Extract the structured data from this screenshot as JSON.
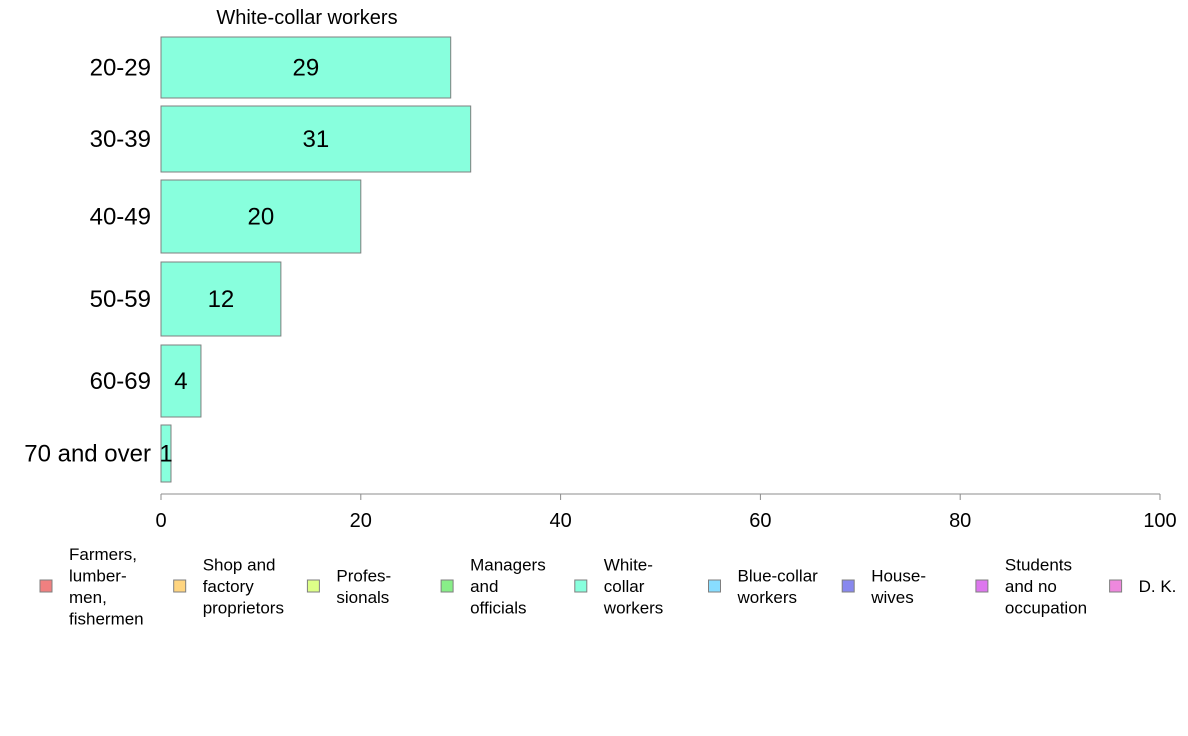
{
  "chart_data": {
    "type": "bar",
    "orientation": "horizontal",
    "title": "White-collar workers",
    "categories": [
      "20-29",
      "30-39",
      "40-49",
      "50-59",
      "60-69",
      "70 and over"
    ],
    "series": [
      {
        "name": "White-collar workers",
        "values": [
          29,
          31,
          20,
          12,
          4,
          1
        ]
      }
    ],
    "data_labels": [
      "29",
      "31",
      "20",
      "12",
      "4",
      "1"
    ],
    "xlim": [
      0,
      100
    ],
    "xticks": [
      0,
      20,
      40,
      60,
      80,
      100
    ],
    "xtick_labels": [
      "0",
      "20",
      "40",
      "60",
      "80",
      "100"
    ],
    "bar_color": "#88ffdd",
    "grid": false,
    "legend_position": "bottom",
    "legend": [
      {
        "lines": [
          "Farmers,",
          "lumber-",
          "men,",
          "fishermen"
        ],
        "color": "#f08080"
      },
      {
        "lines": [
          "Shop and",
          "factory",
          "proprietors"
        ],
        "color": "#ffd580"
      },
      {
        "lines": [
          "Profes-",
          "sionals"
        ],
        "color": "#ddff88"
      },
      {
        "lines": [
          "Managers",
          "and",
          "officials"
        ],
        "color": "#88ee88"
      },
      {
        "lines": [
          "White-",
          "collar",
          "workers"
        ],
        "color": "#88ffdd"
      },
      {
        "lines": [
          "Blue-collar",
          "workers"
        ],
        "color": "#88ddff"
      },
      {
        "lines": [
          "House-",
          "wives"
        ],
        "color": "#8888ee"
      },
      {
        "lines": [
          "Students",
          "and no",
          "occupation"
        ],
        "color": "#dd77ee"
      },
      {
        "lines": [
          "D. K."
        ],
        "color": "#ee88dd"
      }
    ]
  }
}
